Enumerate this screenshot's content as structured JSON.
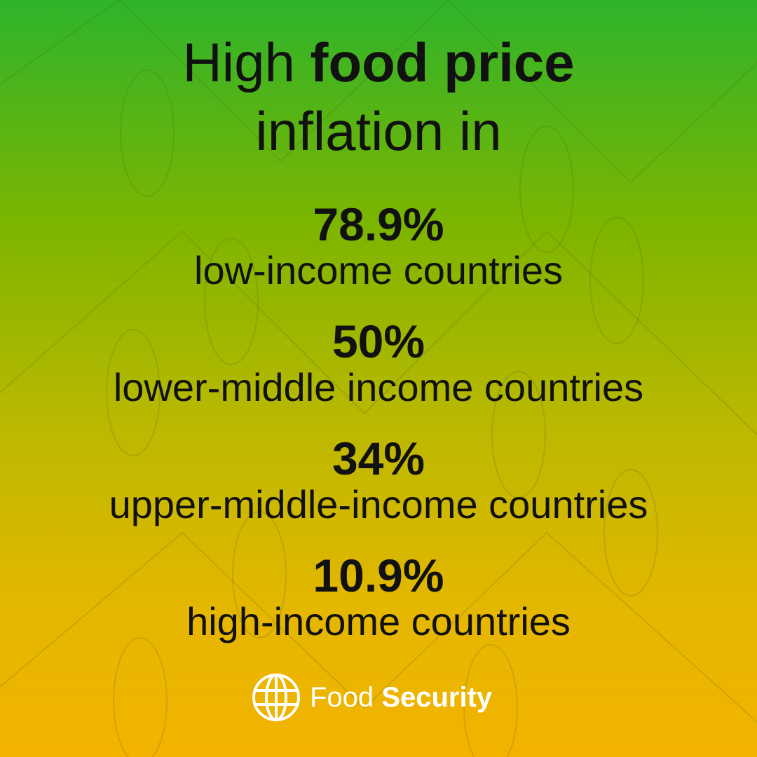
{
  "title": {
    "line1_regular": "High",
    "line1_bold": "food price",
    "line2": "inflation in"
  },
  "items": [
    {
      "value": "78.9%",
      "label": "low-income countries"
    },
    {
      "value": "50%",
      "label": "lower-middle income countries"
    },
    {
      "value": "34%",
      "label": "upper-middle-income countries"
    },
    {
      "value": "10.9%",
      "label": "high-income countries"
    }
  ],
  "footer": {
    "regular": "Food",
    "bold": "Security"
  }
}
